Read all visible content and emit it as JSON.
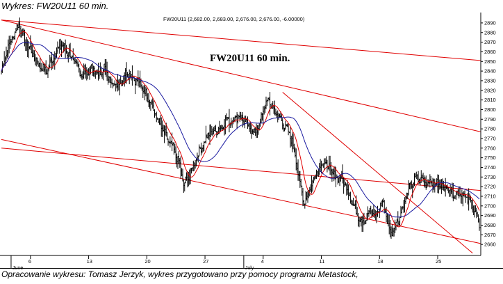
{
  "caption_top": "Wykres: FW20U11 60 min.",
  "caption_bottom": "Opracowanie wykresu: Tomasz Jerzyk, wykres przygotowano przy pomocy programu Metastock,",
  "colors": {
    "price_bars": "#000000",
    "ma_short": "#e00000",
    "ma_long": "#1a1aa0",
    "trendlines": "#e00000",
    "axis": "#000000"
  },
  "chart_data": {
    "type": "line",
    "title": "FW20U11 60 min.",
    "info_header": "FW20U11 (2,682.00, 2,683.00, 2,676.00, 2,676.00, -6.00000)",
    "ylim": [
      2650,
      2895
    ],
    "ylabel": "",
    "xlabel": "",
    "y_ticks": [
      2660,
      2670,
      2680,
      2690,
      2700,
      2710,
      2720,
      2730,
      2740,
      2750,
      2760,
      2770,
      2780,
      2790,
      2800,
      2810,
      2820,
      2830,
      2840,
      2850,
      2860,
      2870,
      2880,
      2890
    ],
    "x_day_labels": [
      {
        "label": "6",
        "bar": 30
      },
      {
        "label": "13",
        "bar": 90
      },
      {
        "label": "20",
        "bar": 150
      },
      {
        "label": "27",
        "bar": 210
      },
      {
        "label": "4",
        "bar": 270
      },
      {
        "label": "11",
        "bar": 330
      },
      {
        "label": "18",
        "bar": 390
      },
      {
        "label": "25",
        "bar": 450
      }
    ],
    "x_month_labels": [
      {
        "label": "June",
        "bar": 10
      },
      {
        "label": "July",
        "bar": 250
      }
    ],
    "bar_count": 494,
    "price_anchors": [
      [
        0,
        2840
      ],
      [
        6,
        2862
      ],
      [
        12,
        2876
      ],
      [
        18,
        2889
      ],
      [
        24,
        2871
      ],
      [
        30,
        2862
      ],
      [
        38,
        2848
      ],
      [
        46,
        2839
      ],
      [
        54,
        2855
      ],
      [
        62,
        2868
      ],
      [
        68,
        2860
      ],
      [
        76,
        2848
      ],
      [
        84,
        2835
      ],
      [
        92,
        2843
      ],
      [
        100,
        2836
      ],
      [
        106,
        2844
      ],
      [
        112,
        2830
      ],
      [
        118,
        2825
      ],
      [
        124,
        2830
      ],
      [
        130,
        2840
      ],
      [
        136,
        2833
      ],
      [
        142,
        2828
      ],
      [
        148,
        2818
      ],
      [
        154,
        2808
      ],
      [
        160,
        2792
      ],
      [
        166,
        2780
      ],
      [
        172,
        2768
      ],
      [
        178,
        2758
      ],
      [
        184,
        2742
      ],
      [
        188,
        2722
      ],
      [
        192,
        2728
      ],
      [
        196,
        2737
      ],
      [
        202,
        2752
      ],
      [
        208,
        2764
      ],
      [
        214,
        2774
      ],
      [
        220,
        2778
      ],
      [
        226,
        2780
      ],
      [
        232,
        2790
      ],
      [
        238,
        2788
      ],
      [
        244,
        2794
      ],
      [
        250,
        2789
      ],
      [
        256,
        2780
      ],
      [
        262,
        2776
      ],
      [
        266,
        2784
      ],
      [
        270,
        2798
      ],
      [
        274,
        2810
      ],
      [
        278,
        2805
      ],
      [
        282,
        2797
      ],
      [
        288,
        2790
      ],
      [
        294,
        2780
      ],
      [
        300,
        2768
      ],
      [
        304,
        2748
      ],
      [
        308,
        2722
      ],
      [
        312,
        2704
      ],
      [
        316,
        2712
      ],
      [
        320,
        2722
      ],
      [
        326,
        2738
      ],
      [
        332,
        2745
      ],
      [
        338,
        2740
      ],
      [
        344,
        2730
      ],
      [
        350,
        2730
      ],
      [
        356,
        2720
      ],
      [
        362,
        2703
      ],
      [
        368,
        2690
      ],
      [
        372,
        2684
      ],
      [
        376,
        2688
      ],
      [
        380,
        2694
      ],
      [
        386,
        2690
      ],
      [
        390,
        2698
      ],
      [
        394,
        2704
      ],
      [
        398,
        2684
      ],
      [
        402,
        2672
      ],
      [
        406,
        2680
      ],
      [
        410,
        2686
      ],
      [
        414,
        2700
      ],
      [
        420,
        2718
      ],
      [
        426,
        2727
      ],
      [
        432,
        2728
      ],
      [
        438,
        2724
      ],
      [
        444,
        2726
      ],
      [
        450,
        2722
      ],
      [
        456,
        2720
      ],
      [
        462,
        2718
      ],
      [
        468,
        2712
      ],
      [
        474,
        2714
      ],
      [
        480,
        2708
      ],
      [
        486,
        2700
      ],
      [
        490,
        2690
      ],
      [
        493,
        2676
      ]
    ],
    "trendlines": [
      {
        "name": "top_channel",
        "p1": [
          0,
          2893
        ],
        "p2": [
          494,
          2851
        ]
      },
      {
        "name": "upper_middle",
        "p1": [
          0,
          2893
        ],
        "p2": [
          494,
          2777
        ]
      },
      {
        "name": "horizontal_support",
        "p1": [
          0,
          2760
        ],
        "p2": [
          494,
          2716
        ]
      },
      {
        "name": "lower_channel",
        "p1": [
          0,
          2769
        ],
        "p2": [
          494,
          2661
        ]
      },
      {
        "name": "steep_descending",
        "p1": [
          290,
          2818
        ],
        "p2": [
          486,
          2651
        ]
      }
    ],
    "moving_averages": [
      {
        "name": "short",
        "period": 12
      },
      {
        "name": "long",
        "period": 36
      }
    ],
    "grid": false
  }
}
